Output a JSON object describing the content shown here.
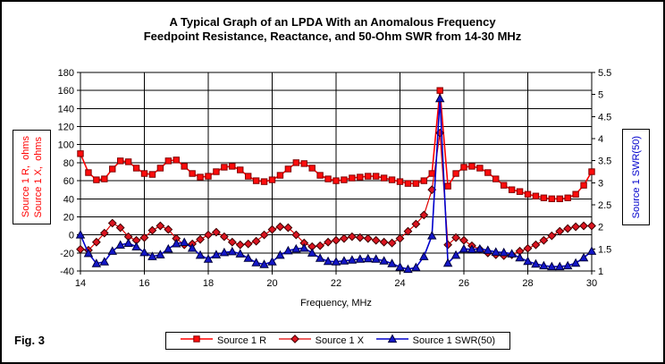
{
  "figure": {
    "fig_label": "Fig. 3"
  },
  "title": {
    "line1": "A Typical Graph of an LPDA With an Anomalous Frequency",
    "line2": "Feedpoint Resistance, Reactance, and 50-Ohm SWR from 14-30 MHz"
  },
  "axes": {
    "left_label_line1": "Source 1 R,  ohms",
    "left_label_line2": "Source 1 X,  ohms",
    "right_label": "Source 1 SWR(50)",
    "x_label": "Frequency, MHz",
    "left_label_color": "#ff0000",
    "right_label_color": "#0000cc"
  },
  "chart_data": {
    "type": "line",
    "title": "A Typical Graph of an LPDA With an Anomalous Frequency — Feedpoint Resistance, Reactance, and 50-Ohm SWR from 14-30 MHz",
    "grid": true,
    "legend_position": "bottom",
    "x_axis": {
      "label": "Frequency, MHz",
      "min": 14,
      "max": 30,
      "ticks": [
        14,
        16,
        18,
        20,
        22,
        24,
        26,
        28,
        30
      ]
    },
    "y_left": {
      "label": "Source 1 R / Source 1 X, ohms",
      "min": -40,
      "max": 180,
      "ticks": [
        180,
        160,
        140,
        120,
        100,
        80,
        60,
        40,
        20,
        0,
        -20,
        -40
      ]
    },
    "y_right": {
      "label": "Source 1 SWR(50)",
      "min": 1,
      "max": 5.5,
      "ticks": [
        5.5,
        5,
        4.5,
        4,
        3.5,
        3,
        2.5,
        2,
        1.5,
        1
      ]
    },
    "x": [
      14,
      14.25,
      14.5,
      14.75,
      15,
      15.25,
      15.5,
      15.75,
      16,
      16.25,
      16.5,
      16.75,
      17,
      17.25,
      17.5,
      17.75,
      18,
      18.25,
      18.5,
      18.75,
      19,
      19.25,
      19.5,
      19.75,
      20,
      20.25,
      20.5,
      20.75,
      21,
      21.25,
      21.5,
      21.75,
      22,
      22.25,
      22.5,
      22.75,
      23,
      23.25,
      23.5,
      23.75,
      24,
      24.25,
      24.5,
      24.75,
      25,
      25.25,
      25.5,
      25.75,
      26,
      26.25,
      26.5,
      26.75,
      27,
      27.25,
      27.5,
      27.75,
      28,
      28.25,
      28.5,
      28.75,
      29,
      29.25,
      29.5,
      29.75,
      30
    ],
    "series": [
      {
        "name": "Source 1 R",
        "axis": "left",
        "marker": "square",
        "line_color": "#ff0000",
        "line_width": 1.6,
        "marker_fill": "#ff0c0c",
        "marker_stroke": "#7f0000",
        "values": [
          90,
          69,
          61,
          62,
          73,
          82,
          81,
          74,
          68,
          67,
          74,
          82,
          83,
          76,
          68,
          64,
          65,
          70,
          75,
          76,
          72,
          65,
          60,
          59,
          61,
          66,
          73,
          80,
          79,
          74,
          66,
          62,
          60,
          61,
          63,
          64,
          65,
          65,
          63,
          61,
          59,
          57,
          57,
          60,
          68,
          160,
          54,
          68,
          75,
          76,
          74,
          69,
          62,
          55,
          50,
          48,
          45,
          43,
          41,
          40,
          40,
          41,
          45,
          55,
          70
        ]
      },
      {
        "name": "Source 1 X",
        "axis": "left",
        "marker": "diamond",
        "line_color": "#e00000",
        "line_width": 1.2,
        "marker_fill": "#dc1420",
        "marker_stroke": "#3c0000",
        "values": [
          -16,
          -17,
          -8,
          2,
          13,
          8,
          -2,
          -6,
          -3,
          5,
          10,
          6,
          -4,
          -11,
          -10,
          -5,
          0,
          3,
          -2,
          -8,
          -11,
          -10,
          -7,
          0,
          6,
          9,
          8,
          0,
          -9,
          -13,
          -12,
          -8,
          -6,
          -4,
          -2,
          -3,
          -4,
          -6,
          -8,
          -9,
          -4,
          4,
          12,
          22,
          50,
          113,
          -11,
          -3,
          -6,
          -12,
          -16,
          -20,
          -22,
          -23,
          -22,
          -18,
          -15,
          -11,
          -6,
          -1,
          4,
          7,
          9,
          10,
          10
        ]
      },
      {
        "name": "Source 1 SWR(50)",
        "axis": "right",
        "marker": "triangle",
        "line_color": "#0000cc",
        "line_width": 1.6,
        "marker_fill": "#1316c8",
        "marker_stroke": "#00003c",
        "values": [
          1.82,
          1.4,
          1.17,
          1.21,
          1.45,
          1.59,
          1.63,
          1.55,
          1.42,
          1.33,
          1.37,
          1.5,
          1.62,
          1.65,
          1.52,
          1.36,
          1.27,
          1.37,
          1.42,
          1.44,
          1.39,
          1.29,
          1.19,
          1.15,
          1.21,
          1.36,
          1.46,
          1.5,
          1.52,
          1.41,
          1.29,
          1.22,
          1.21,
          1.23,
          1.25,
          1.27,
          1.28,
          1.27,
          1.23,
          1.17,
          1.09,
          1.04,
          1.08,
          1.33,
          1.8,
          4.91,
          1.18,
          1.36,
          1.5,
          1.49,
          1.5,
          1.47,
          1.43,
          1.42,
          1.39,
          1.3,
          1.22,
          1.16,
          1.12,
          1.1,
          1.1,
          1.12,
          1.18,
          1.3,
          1.45
        ]
      }
    ]
  }
}
